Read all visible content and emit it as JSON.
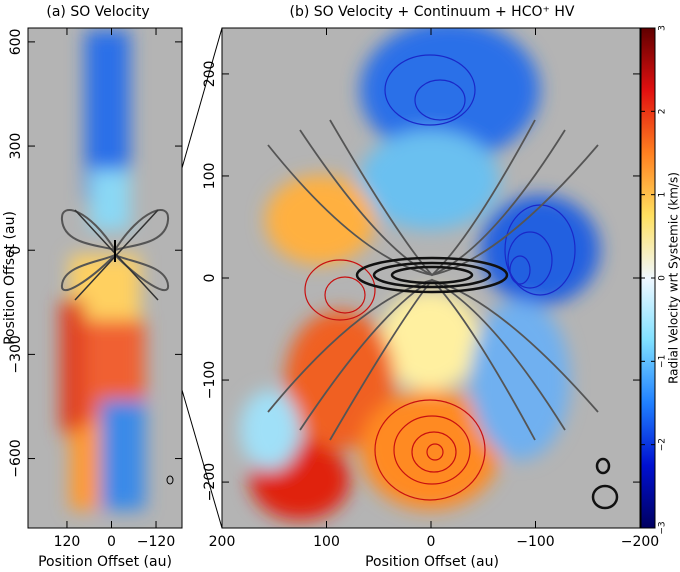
{
  "chart_data": [
    {
      "type": "image",
      "title": "(a) SO Velocity",
      "xlabel": "Position Offset (au)",
      "ylabel": "Position Offset (au)",
      "xlim": [
        225,
        -190
      ],
      "ylim": [
        -800,
        640
      ],
      "xticks": [
        120,
        0,
        {
          "value": -120,
          "label": "−120"
        }
      ],
      "yticks": [
        600,
        300,
        0,
        {
          "value": -300,
          "label": "−300"
        },
        {
          "value": -600,
          "label": "−600"
        }
      ]
    },
    {
      "type": "image",
      "title": "(b) SO Velocity + Continuum + HCO⁺ HV",
      "xlabel": "Position Offset (au)",
      "xlim": [
        200,
        -200
      ],
      "ylim": [
        -245,
        245
      ],
      "xticks": [
        200,
        100,
        0,
        {
          "value": -100,
          "label": "−100"
        },
        {
          "value": -200,
          "label": "−200"
        }
      ],
      "yticks": [
        200,
        100,
        0,
        {
          "value": -100,
          "label": "−100"
        },
        {
          "value": -200,
          "label": "−200"
        }
      ],
      "colorbar": {
        "label": "Radial Velocity wrt Systemic (km/s)",
        "lim": [
          -3,
          3
        ],
        "ticks": [
          {
            "value": -3,
            "label": "−3"
          },
          {
            "value": -2,
            "label": "−2"
          },
          {
            "value": -1,
            "label": "−1"
          },
          0,
          1,
          2,
          3
        ],
        "colors": [
          "#000060",
          "#0010d0",
          "#2080ff",
          "#80e0ff",
          "#f0f8ff",
          "#ffe060",
          "#ff8020",
          "#e01010",
          "#600000"
        ]
      }
    }
  ]
}
